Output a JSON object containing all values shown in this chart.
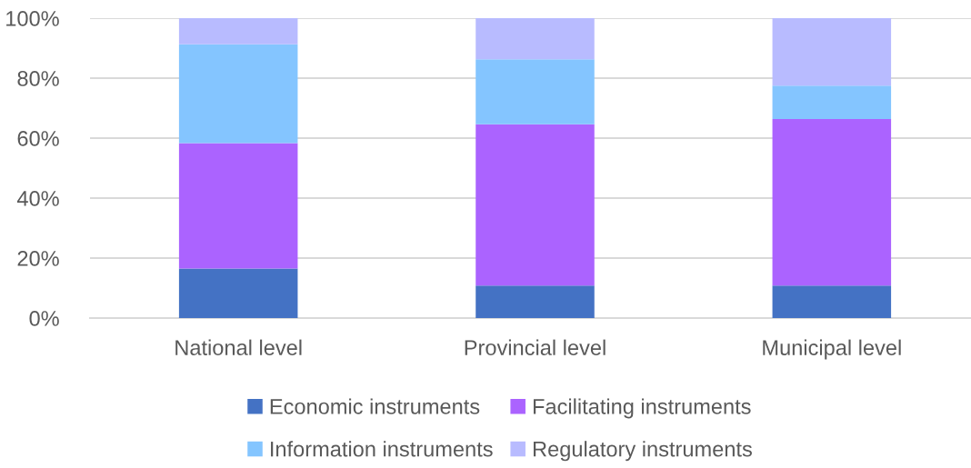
{
  "chart_data": {
    "type": "bar",
    "stacked": true,
    "categories": [
      "National level",
      "Provincial level",
      "Municipal level"
    ],
    "series": [
      {
        "name": "Economic instruments",
        "color": "#4472c4",
        "values": [
          16.5,
          10.8,
          10.8
        ]
      },
      {
        "name": "Facilitating instruments",
        "color": "#ab63ff",
        "values": [
          41.8,
          53.8,
          55.6
        ]
      },
      {
        "name": "Information instruments",
        "color": "#84c5ff",
        "values": [
          33.0,
          21.7,
          11.1
        ]
      },
      {
        "name": "Regulatory instruments",
        "color": "#b8bbff",
        "values": [
          8.7,
          13.7,
          22.5
        ]
      }
    ],
    "ylim": [
      0,
      100
    ],
    "yticks": [
      {
        "value": 0,
        "label": "0%"
      },
      {
        "value": 20,
        "label": "20%"
      },
      {
        "value": 40,
        "label": "40%"
      },
      {
        "value": 60,
        "label": "60%"
      },
      {
        "value": 80,
        "label": "80%"
      },
      {
        "value": 100,
        "label": "100%"
      }
    ],
    "grid": "y",
    "legend": "bottom"
  }
}
